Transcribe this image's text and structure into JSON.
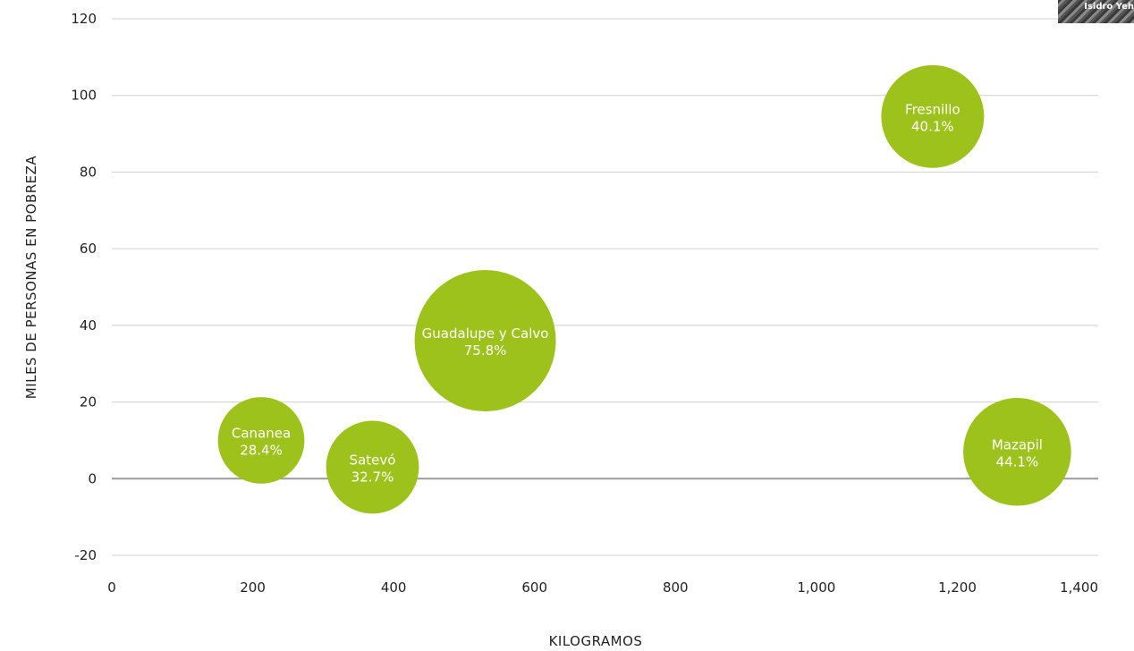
{
  "chart_data": {
    "type": "scatter",
    "xlabel": "KILOGRAMOS",
    "ylabel": "MILES DE PERSONAS EN POBREZA",
    "xlim": [
      0,
      1400
    ],
    "ylim": [
      -20,
      120
    ],
    "x_ticks": [
      "0",
      "200",
      "400",
      "600",
      "800",
      "1,000",
      "1,200",
      "1,400"
    ],
    "y_ticks": [
      "120",
      "100",
      "80",
      "60",
      "40",
      "20",
      "0",
      "-20"
    ],
    "grid": "horizontal",
    "bubble_color": "#9DC21B",
    "points": [
      {
        "name": "Cananea",
        "x": 212,
        "y": 10,
        "pct": "28.4%",
        "size": 28.4
      },
      {
        "name": "Satevó",
        "x": 370,
        "y": 3,
        "pct": "32.7%",
        "size": 32.7
      },
      {
        "name": "Guadalupe y Calvo",
        "x": 530,
        "y": 36,
        "pct": "75.8%",
        "size": 75.8
      },
      {
        "name": "Fresnillo",
        "x": 1165,
        "y": 94.5,
        "pct": "40.1%",
        "size": 40.1
      },
      {
        "name": "Mazapil",
        "x": 1285,
        "y": 7,
        "pct": "44.1%",
        "size": 44.1
      }
    ]
  },
  "watermark": {
    "text": "Isidro Yeh"
  }
}
